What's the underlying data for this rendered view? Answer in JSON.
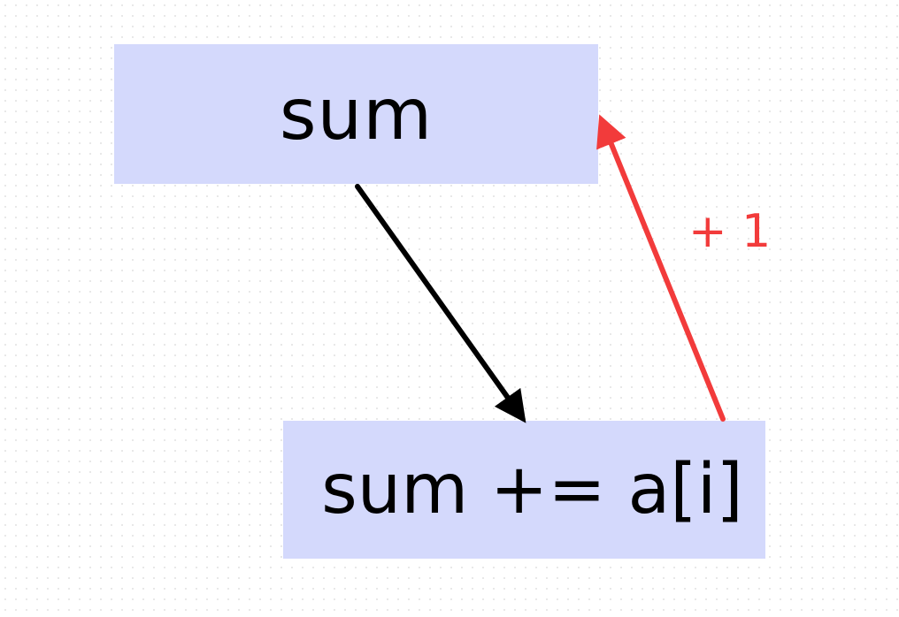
{
  "diagram": {
    "top_box": {
      "label": "sum"
    },
    "bottom_box": {
      "label": "sum += a[i]"
    },
    "feedback_edge": {
      "label": "+ 1",
      "color": "#f23b3b"
    },
    "flow_edge": {
      "color": "#000000"
    },
    "box_fill": "#d4d9fc"
  }
}
